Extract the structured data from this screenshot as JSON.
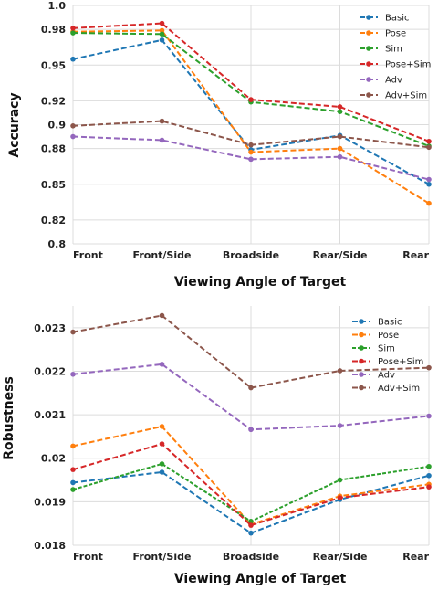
{
  "chart_data": [
    {
      "type": "line",
      "categories": [
        "Front",
        "Front/Side",
        "Broadside",
        "Rear/Side",
        "Rear"
      ],
      "ylabel": "Accuracy",
      "xlabel": "Viewing Angle of Target",
      "ylim": [
        0.8,
        1.0
      ],
      "yticks": [
        0.8,
        0.82,
        0.85,
        0.88,
        0.9,
        0.92,
        0.95,
        0.98,
        1.0
      ],
      "ytick_labels": [
        "0.8",
        "0.82",
        "0.85",
        "0.88",
        "0.9",
        "0.92",
        "0.95",
        "0.98",
        "1.0"
      ],
      "grid": true,
      "legend": "top-right",
      "series": [
        {
          "name": "Basic",
          "color": "#1f77b4",
          "dash": "dashed",
          "values": [
            0.955,
            0.971,
            0.879,
            0.891,
            0.85
          ]
        },
        {
          "name": "Pose",
          "color": "#ff7f0e",
          "dash": "dashed",
          "values": [
            0.978,
            0.979,
            0.877,
            0.88,
            0.834
          ]
        },
        {
          "name": "Sim",
          "color": "#2ca02c",
          "dash": "dashed",
          "values": [
            0.977,
            0.976,
            0.919,
            0.911,
            0.882
          ]
        },
        {
          "name": "Pose+Sim",
          "color": "#d62728",
          "dash": "dashed",
          "values": [
            0.981,
            0.985,
            0.921,
            0.915,
            0.886
          ]
        },
        {
          "name": "Adv",
          "color": "#9467bd",
          "dash": "dashed",
          "values": [
            0.89,
            0.887,
            0.871,
            0.873,
            0.854
          ]
        },
        {
          "name": "Adv+Sim",
          "color": "#8c564b",
          "dash": "dashed",
          "values": [
            0.899,
            0.903,
            0.883,
            0.89,
            0.881
          ]
        }
      ]
    },
    {
      "type": "line",
      "categories": [
        "Front",
        "Front/Side",
        "Broadside",
        "Rear/Side",
        "Rear"
      ],
      "ylabel": "Robustness",
      "xlabel": "Viewing Angle of Target",
      "ylim": [
        0.018,
        0.0235
      ],
      "yticks": [
        0.018,
        0.019,
        0.02,
        0.021,
        0.022,
        0.023
      ],
      "ytick_labels": [
        "0.018",
        "0.019",
        "0.02",
        "0.021",
        "0.022",
        "0.023"
      ],
      "grid": true,
      "legend": "top-right",
      "series": [
        {
          "name": "Basic",
          "color": "#1f77b4",
          "dash": "dashed",
          "values": [
            0.01944,
            0.01968,
            0.01828,
            0.01905,
            0.0196
          ]
        },
        {
          "name": "Pose",
          "color": "#ff7f0e",
          "dash": "dashed",
          "values": [
            0.02028,
            0.02073,
            0.01848,
            0.01913,
            0.0194
          ]
        },
        {
          "name": "Sim",
          "color": "#2ca02c",
          "dash": "dotted",
          "values": [
            0.01928,
            0.01987,
            0.01855,
            0.0195,
            0.01981
          ]
        },
        {
          "name": "Pose+Sim",
          "color": "#d62728",
          "dash": "dashed",
          "values": [
            0.01974,
            0.02033,
            0.01846,
            0.01909,
            0.01934
          ]
        },
        {
          "name": "Adv",
          "color": "#9467bd",
          "dash": "dashed",
          "values": [
            0.02193,
            0.02216,
            0.02066,
            0.02075,
            0.02097
          ]
        },
        {
          "name": "Adv+Sim",
          "color": "#8c564b",
          "dash": "dashed",
          "values": [
            0.0229,
            0.02328,
            0.02162,
            0.02201,
            0.02208
          ]
        }
      ]
    }
  ]
}
